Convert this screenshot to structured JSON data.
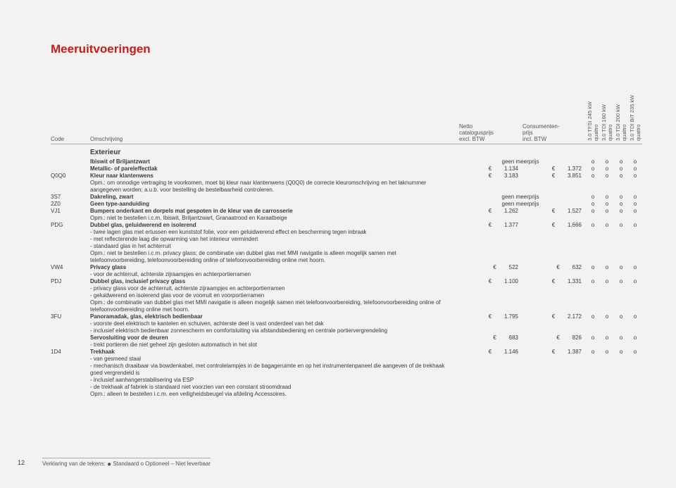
{
  "title": "Meeruitvoeringen",
  "header": {
    "code": "Code",
    "desc": "Omschrijving",
    "price1_l1": "Netto",
    "price1_l2": "catalogusprijs",
    "price1_l3": "excl. BTW",
    "price2_l1": "Consumenten-",
    "price2_l2": "prijs",
    "price2_l3": "incl. BTW",
    "variants": [
      "3.0 TFSI 245 kW quattro",
      "3.0 TDI 160 kW quattro",
      "3.0 TDI 200 kW quattro",
      "3.0 TDI BiT 235 kW quattro"
    ]
  },
  "section": "Exterieur",
  "rows": [
    {
      "code": "",
      "desc": "Ibiswit of Briljantzwart",
      "bold": true,
      "geen": true,
      "avail": [
        "o",
        "o",
        "o",
        "o"
      ]
    },
    {
      "code": "",
      "desc": "Metallic- of pareleffectlak",
      "bold": true,
      "p1": "1.134",
      "p2": "1.372",
      "avail": [
        "o",
        "o",
        "o",
        "o"
      ]
    },
    {
      "code": "Q0Q0",
      "desc": "Kleur naar klantenwens",
      "bold": true,
      "p1": "3.183",
      "p2": "3.851",
      "avail": [
        "o",
        "o",
        "o",
        "o"
      ]
    },
    {
      "code": "",
      "desc": "Opm.: om onnodige vertraging te voorkomen, moet bij kleur naar klantenwens (Q0Q0) de correcte kleuromschrijving en het laknummer aangegeven worden; a.u.b. voor bestelling de bestelbaarheid controleren."
    },
    {
      "code": "3S7",
      "desc": "Dakreling, zwart",
      "bold": true,
      "geen": true,
      "avail": [
        "o",
        "o",
        "o",
        "o"
      ]
    },
    {
      "code": "2Z0",
      "desc": "Geen type-aanduiding",
      "bold": true,
      "geen": true,
      "avail": [
        "o",
        "o",
        "o",
        "o"
      ]
    },
    {
      "code": "VJ1",
      "desc": "Bumpers onderkant en dorpels mat gespoten in de kleur van de carrosserie",
      "bold": true,
      "p1": "1.262",
      "p2": "1.527",
      "avail": [
        "o",
        "o",
        "o",
        "o"
      ]
    },
    {
      "code": "",
      "desc": "Opm.: niet te bestellen i.c.m. Ibiswit, Briljantzwart, Granaatrood en Karaatbeige"
    },
    {
      "code": "PDG",
      "desc": "Dubbel glas, geluidwerend en isolerend",
      "bold": true,
      "p1": "1.377",
      "p2": "1.666",
      "avail": [
        "o",
        "o",
        "o",
        "o"
      ]
    },
    {
      "code": "",
      "desc": "- twee lagen glas met ertussen een kunststof folie, voor een geluidwerend effect en bescherming tegen inbraak"
    },
    {
      "code": "",
      "desc": "- met reflecterende laag die opwarming van het interieur vermindert"
    },
    {
      "code": "",
      "desc": "- standaard glas in het achterruit"
    },
    {
      "code": "",
      "desc": "Opm.: niet te bestellen i.c.m. privacy glass; de combinatie van dubbel glas met MMI navigatie is alleen mogelijk samen met  telefoonvoorbereiding, telefoonvoorbereiding online of telefoonvoorbereiding online met hoorn."
    },
    {
      "code": "VW4",
      "desc": "Privacy glass",
      "bold": true,
      "p1": "522",
      "p2": "632",
      "avail": [
        "o",
        "o",
        "o",
        "o"
      ]
    },
    {
      "code": "",
      "desc": "- voor de achterruit, achterste zijraampjes en achterportierramen"
    },
    {
      "code": "PDJ",
      "desc": "Dubbel glas, inclusief privacy glass",
      "bold": true,
      "p1": "1.100",
      "p2": "1.331",
      "avail": [
        "o",
        "o",
        "o",
        "o"
      ]
    },
    {
      "code": "",
      "desc": "- privacy glass voor de achterruit, achterste zijraampjes en achterportierramen"
    },
    {
      "code": "",
      "desc": "- geluidwerend en isolerend glas voor de voorruit en voorportierramen"
    },
    {
      "code": "",
      "desc": "Opm.: de combinatie van dubbel glas met MMI navigatie is alleen mogelijk samen met  telefoonvoorbereiding, telefoonvoorbereiding online of telefoonvoorbereiding online met hoorn."
    },
    {
      "code": "3FU",
      "desc": "Panoramadak, glas, elektrisch bedienbaar",
      "bold": true,
      "p1": "1.795",
      "p2": "2.172",
      "avail": [
        "o",
        "o",
        "o",
        "o"
      ]
    },
    {
      "code": "",
      "desc": "- voorste deel elektrisch te kantelen en schuiven, achterste deel is vast onderdeel van het dak"
    },
    {
      "code": "",
      "desc": "- inclusief elektrisch bedienbaar zonnescherm en comfortsluiting via afstandsbediening en centrale portiervergrendeling"
    },
    {
      "code": "",
      "desc": "Servosluiting voor de deuren",
      "bold": true,
      "p1": "683",
      "p2": "826",
      "avail": [
        "o",
        "o",
        "o",
        "o"
      ]
    },
    {
      "code": "",
      "desc": "- trekt portieren die niet geheel zijn gesloten automatisch in het slot"
    },
    {
      "code": "1D4",
      "desc": "Trekhaak",
      "bold": true,
      "p1": "1.146",
      "p2": "1.387",
      "avail": [
        "o",
        "o",
        "o",
        "o"
      ]
    },
    {
      "code": "",
      "desc": "- van gesmeed staal"
    },
    {
      "code": "",
      "desc": "- mechanisch draaibaar via bowdenkabel, met controlelampjes in de bagageruimte en op het instrumentenpaneel die aangeven of de trekhaak goed vergrendeld is"
    },
    {
      "code": "",
      "desc": "- inclusief aanhangerstabilisering via ESP"
    },
    {
      "code": "",
      "desc": "- de trekhaak af fabriek is standaard niet voorzien van een constant stroomdraad"
    },
    {
      "code": "",
      "desc": "Opm.: alleen te bestellen i.c.m. een veiligheidsbeugel via afdeling Accessoires."
    }
  ],
  "geen_text": "geen meerprijs",
  "euro": "€",
  "footer": {
    "page": "12",
    "legend": "Verklaring van de tekens: ",
    "std": " Standaard  o Optioneel  – Niet leverbaar"
  }
}
